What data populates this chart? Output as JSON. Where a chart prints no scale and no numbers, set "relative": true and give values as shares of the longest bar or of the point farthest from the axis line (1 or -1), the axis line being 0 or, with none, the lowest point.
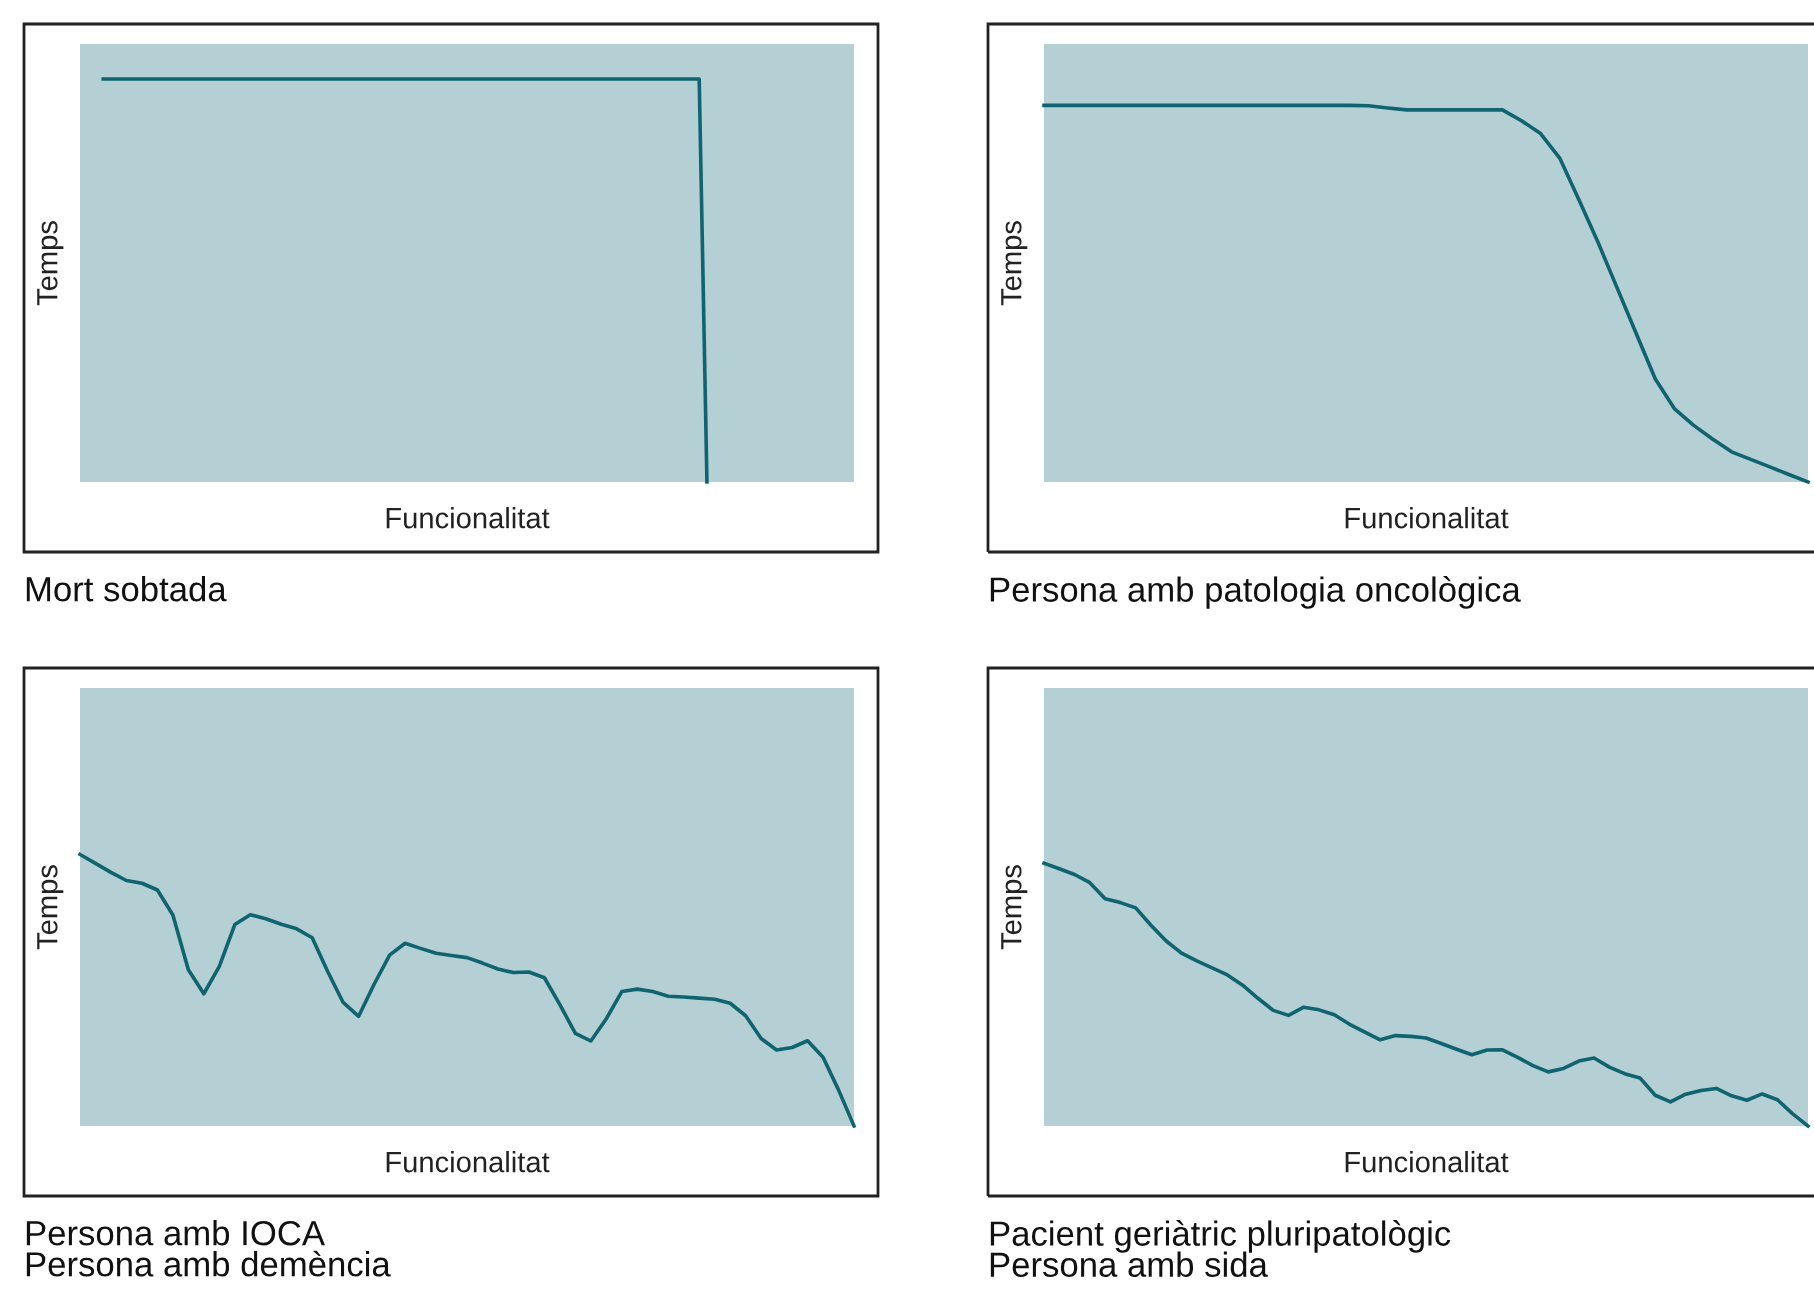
{
  "chart_data": [
    {
      "type": "line",
      "relative": true,
      "title": "Mort sobtada",
      "xlabel": "Funcionalitat",
      "ylabel": "Temps",
      "tick_labels": false,
      "categories": [
        null,
        null,
        null,
        null,
        null,
        null,
        null,
        null,
        null,
        null,
        null,
        null,
        null,
        null,
        null,
        null,
        null,
        null,
        null,
        null,
        null,
        null,
        null,
        null,
        null,
        null,
        null,
        null,
        null,
        null,
        null,
        null,
        null,
        null,
        null,
        null,
        null,
        null,
        null,
        null,
        null,
        null,
        null,
        null,
        null,
        null,
        null,
        null,
        null,
        null,
        null,
        null,
        null,
        null,
        null,
        null,
        null,
        null,
        null,
        null,
        null,
        null,
        null,
        null,
        null,
        null,
        null,
        null,
        null,
        null,
        null,
        null,
        null,
        null,
        null,
        null,
        null,
        null,
        null,
        null,
        null,
        null,
        null,
        null,
        null,
        null,
        null,
        null,
        null,
        null,
        null,
        null,
        null,
        null,
        null,
        null,
        null,
        null,
        null,
        null,
        null
      ],
      "series": [
        {
          "color": "#0f6470",
          "values": [
            null,
            null,
            null,
            1,
            1,
            1,
            1,
            1,
            1,
            1,
            1,
            1,
            1,
            1,
            1,
            1,
            1,
            1,
            1,
            1,
            1,
            1,
            1,
            1,
            1,
            1,
            1,
            1,
            1,
            1,
            1,
            1,
            1,
            1,
            1,
            1,
            1,
            1,
            1,
            1,
            1,
            1,
            1,
            1,
            1,
            1,
            1,
            1,
            1,
            1,
            1,
            1,
            1,
            1,
            1,
            1,
            1,
            1,
            1,
            1,
            1,
            1,
            1,
            1,
            1,
            1,
            1,
            1,
            1,
            1,
            1,
            1,
            1,
            1,
            1,
            1,
            1,
            1,
            1,
            1,
            1,
            0,
            null,
            null,
            null,
            null,
            null,
            null,
            null,
            null,
            null,
            null,
            null,
            null,
            null,
            null,
            null,
            null,
            null,
            null,
            null
          ]
        }
      ]
    },
    {
      "type": "line",
      "relative": true,
      "title": "Persona amb patologia oncològica",
      "xlabel": "Funcionalitat",
      "ylabel": "Temps",
      "tick_labels": false,
      "categories": [
        null,
        null,
        null,
        null,
        null,
        null,
        null,
        null,
        null,
        null,
        null,
        null,
        null,
        null,
        null,
        null,
        null,
        null,
        null,
        null,
        null,
        null,
        null,
        null,
        null,
        null,
        null,
        null,
        null,
        null,
        null,
        null,
        null,
        null,
        null,
        null,
        null,
        null,
        null,
        null,
        null
      ],
      "series": [
        {
          "color": "#0f6470",
          "values": [
            1,
            1,
            1,
            1,
            1,
            1,
            1,
            1,
            1,
            1,
            1,
            1,
            1,
            1,
            1,
            1,
            1,
            0.999,
            0.993,
            0.988,
            0.988,
            0.988,
            0.988,
            0.988,
            0.988,
            0.959,
            0.925,
            0.86,
            0.75,
            0.637,
            0.516,
            0.395,
            0.274,
            0.195,
            0.151,
            0.114,
            0.08,
            0.06,
            0.04,
            0.02,
            0
          ]
        }
      ]
    },
    {
      "type": "line",
      "relative": true,
      "title": "Persona amb IOCA\nPersona amb demència",
      "xlabel": "Funcionalitat",
      "ylabel": "Temps",
      "tick_labels": false,
      "categories": [
        null,
        null,
        null,
        null,
        null,
        null,
        null,
        null,
        null,
        null,
        null,
        null,
        null,
        null,
        null,
        null,
        null,
        null,
        null,
        null,
        null,
        null,
        null,
        null,
        null,
        null,
        null,
        null,
        null,
        null,
        null,
        null,
        null,
        null,
        null,
        null,
        null,
        null,
        null,
        null,
        null,
        null,
        null,
        null,
        null,
        null,
        null,
        null,
        null,
        null,
        null
      ],
      "series": [
        {
          "color": "#0f6470",
          "values": [
            1,
            0.967,
            0.934,
            0.904,
            0.894,
            0.869,
            0.777,
            0.575,
            0.487,
            0.588,
            0.742,
            0.778,
            0.763,
            0.743,
            0.726,
            0.693,
            0.569,
            0.455,
            0.404,
            0.522,
            0.629,
            0.673,
            0.654,
            0.636,
            0.628,
            0.62,
            0.6,
            0.578,
            0.565,
            0.567,
            0.546,
            0.447,
            0.341,
            0.313,
            0.395,
            0.495,
            0.504,
            0.495,
            0.478,
            0.475,
            0.471,
            0.467,
            0.452,
            0.406,
            0.322,
            0.28,
            0.289,
            0.314,
            0.253,
            0.133,
            0
          ]
        }
      ]
    },
    {
      "type": "line",
      "relative": true,
      "title": "Pacient geriàtric pluripatològic\nPersona amb sida",
      "xlabel": "Funcionalitat",
      "ylabel": "Temps",
      "tick_labels": false,
      "categories": [
        null,
        null,
        null,
        null,
        null,
        null,
        null,
        null,
        null,
        null,
        null,
        null,
        null,
        null,
        null,
        null,
        null,
        null,
        null,
        null,
        null,
        null,
        null,
        null,
        null,
        null,
        null,
        null,
        null,
        null,
        null,
        null,
        null,
        null,
        null,
        null,
        null,
        null,
        null,
        null,
        null,
        null,
        null,
        null,
        null,
        null,
        null,
        null,
        null,
        null,
        null
      ],
      "series": [
        {
          "color": "#0f6470",
          "values": [
            1,
            0.979,
            0.957,
            0.926,
            0.865,
            0.85,
            0.83,
            0.764,
            0.704,
            0.658,
            0.628,
            0.602,
            0.575,
            0.536,
            0.486,
            0.44,
            0.421,
            0.452,
            0.442,
            0.423,
            0.387,
            0.357,
            0.328,
            0.344,
            0.341,
            0.335,
            0.314,
            0.292,
            0.271,
            0.289,
            0.29,
            0.261,
            0.23,
            0.206,
            0.219,
            0.247,
            0.259,
            0.224,
            0.199,
            0.183,
            0.117,
            0.092,
            0.121,
            0.135,
            0.143,
            0.115,
            0.098,
            0.122,
            0.1,
            0.046,
            0
          ]
        }
      ]
    }
  ]
}
